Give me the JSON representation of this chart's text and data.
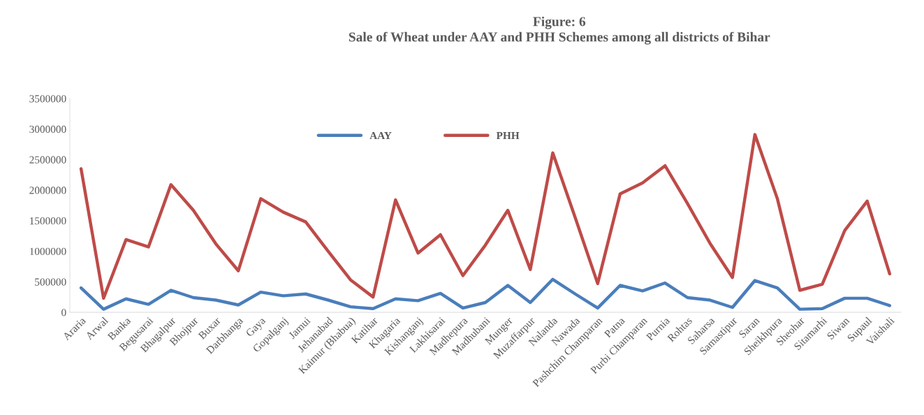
{
  "chart_data": {
    "type": "line",
    "title": "Figure: 6\nSale of Wheat under AAY and PHH Schemes among all districts of Bihar",
    "categories": [
      "Araria",
      "Arwal",
      "Banka",
      "Begusarai",
      "Bhagalpur",
      "Bhojpur",
      "Buxar",
      "Darbhanga",
      "Gaya",
      "Gopalganj",
      "Jamui",
      "Jehanabad",
      "Kaimur (Bhabua)",
      "Katihar",
      "Khagaria",
      "Kishanganj",
      "Lakhisarai",
      "Madhepura",
      "Madhubani",
      "Munger",
      "Muzaffarpur",
      "Nalanda",
      "Nawada",
      "Pashchim Champaran",
      "Patna",
      "Purbi Champaran",
      "Purnia",
      "Rohtas",
      "Saharsa",
      "Samastipur",
      "Saran",
      "Sheikhpura",
      "Sheohar",
      "Sitamarhi",
      "Siwan",
      "Supaul",
      "Vaishali"
    ],
    "series": [
      {
        "name": "AAY",
        "color": "#4a7ebb",
        "values": [
          400000,
          50000,
          220000,
          130000,
          360000,
          240000,
          200000,
          120000,
          330000,
          270000,
          300000,
          200000,
          90000,
          60000,
          220000,
          190000,
          310000,
          70000,
          160000,
          440000,
          160000,
          540000,
          300000,
          70000,
          440000,
          350000,
          480000,
          240000,
          200000,
          80000,
          520000,
          400000,
          50000,
          60000,
          230000,
          230000,
          110000
        ]
      },
      {
        "name": "PHH",
        "color": "#be4b48",
        "values": [
          2350000,
          230000,
          1190000,
          1070000,
          2090000,
          1670000,
          1120000,
          680000,
          1860000,
          1640000,
          1480000,
          1000000,
          530000,
          250000,
          1840000,
          970000,
          1270000,
          600000,
          1100000,
          1670000,
          700000,
          2610000,
          1550000,
          470000,
          1940000,
          2120000,
          2400000,
          1780000,
          1130000,
          570000,
          2910000,
          1860000,
          360000,
          460000,
          1340000,
          1820000,
          630000
        ]
      }
    ],
    "ylim": [
      0,
      3500000
    ],
    "yticks": [
      0,
      500000,
      1000000,
      1500000,
      2000000,
      2500000,
      3000000,
      3500000
    ],
    "grid": false,
    "legend": "top",
    "marker": "none",
    "line_style": "solid"
  }
}
